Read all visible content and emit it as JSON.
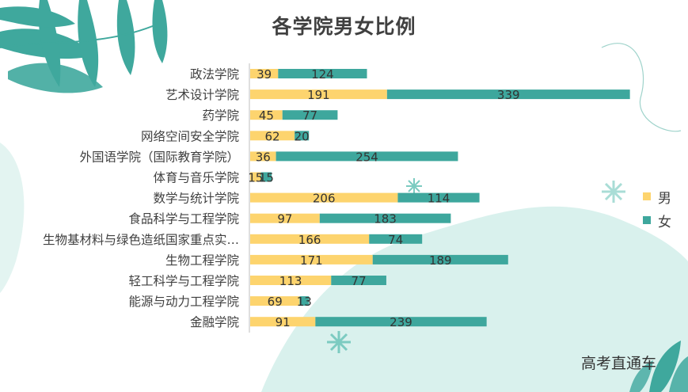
{
  "colors": {
    "male": "#FDD46E",
    "female": "#3EA79D",
    "leaf": "#3FA89D",
    "blob": "#D7F0EC"
  },
  "watermark": "高考直通车",
  "chart_data": {
    "type": "bar",
    "orientation": "horizontal",
    "stacked": true,
    "title": "各学院男女比例",
    "categories": [
      "政法学院",
      "艺术设计学院",
      "药学院",
      "网络空间安全学院",
      "外国语学院（国际教育学院）",
      "体育与音乐学院",
      "数学与统计学院",
      "食品科学与工程学院",
      "生物基材料与绿色造纸国家重点实…",
      "生物工程学院",
      "轻工科学与工程学院",
      "能源与动力工程学院",
      "金融学院"
    ],
    "series": [
      {
        "name": "男",
        "values": [
          39,
          191,
          45,
          62,
          36,
          15,
          206,
          97,
          166,
          171,
          113,
          69,
          91
        ]
      },
      {
        "name": "女",
        "values": [
          124,
          339,
          77,
          20,
          254,
          15,
          114,
          183,
          74,
          189,
          77,
          13,
          239
        ]
      }
    ],
    "xlim": [
      0,
      560
    ],
    "grid": false,
    "legend_position": "right"
  }
}
